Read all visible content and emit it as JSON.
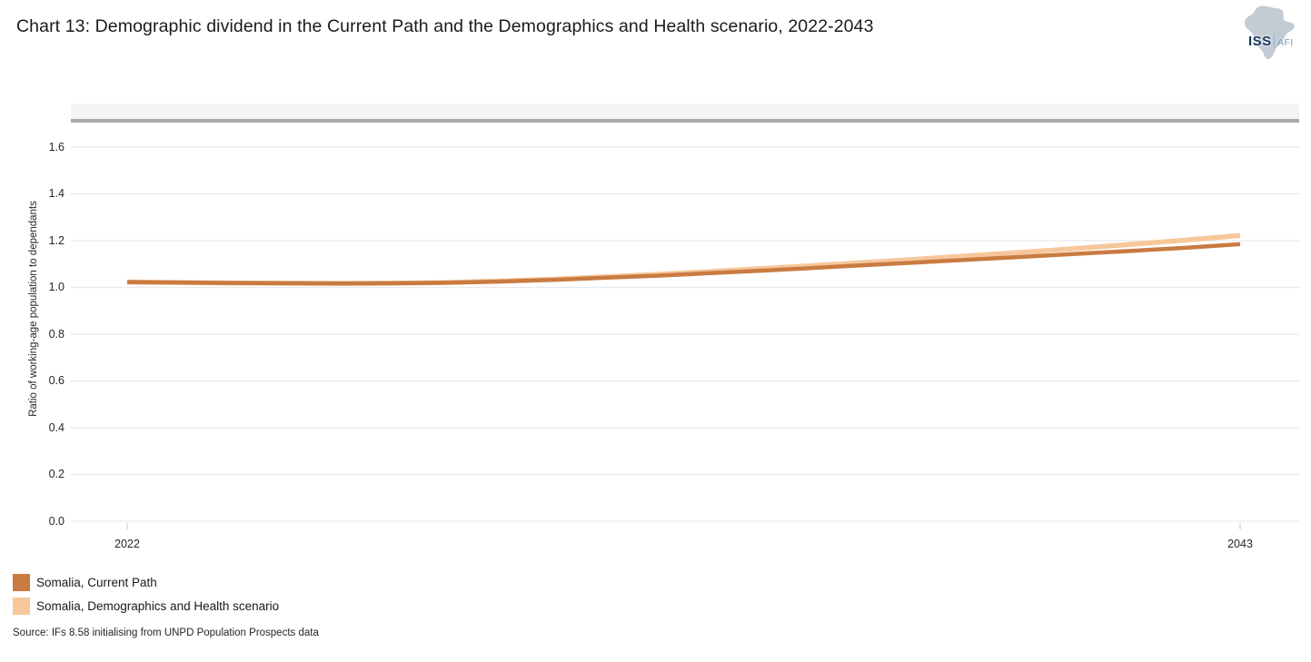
{
  "header": {
    "title": "Chart 13: Demographic dividend in the Current Path and the Demographics and Health scenario, 2022-2043",
    "logo": {
      "org": "ISS",
      "sub": "AFI"
    }
  },
  "chart_data": {
    "type": "line",
    "title": "Chart 13: Demographic dividend in the Current Path and the Demographics and Health scenario, 2022-2043",
    "xlabel": "",
    "ylabel": "Ratio of working-age population to dependants",
    "xlim": [
      2022,
      2043
    ],
    "ylim": [
      0,
      1.6
    ],
    "yticks": [
      0.0,
      0.2,
      0.4,
      0.6,
      0.8,
      1.0,
      1.2,
      1.4,
      1.6
    ],
    "ytick_labels": [
      "0.0",
      "0.2",
      "0.4",
      "0.6",
      "0.8",
      "1.0",
      "1.2",
      "1.4",
      "1.6"
    ],
    "xticks": [
      2022,
      2043
    ],
    "xtick_labels": [
      "2022",
      "2043"
    ],
    "grid": "horizontal",
    "legend_position": "bottom-left",
    "x": [
      2022,
      2023,
      2024,
      2025,
      2026,
      2027,
      2028,
      2029,
      2030,
      2031,
      2032,
      2033,
      2034,
      2035,
      2036,
      2037,
      2038,
      2039,
      2040,
      2041,
      2042,
      2043
    ],
    "series": [
      {
        "name": "Somalia, Current Path",
        "color": "#C97B42",
        "values": [
          1.023,
          1.021,
          1.019,
          1.018,
          1.017,
          1.018,
          1.02,
          1.025,
          1.032,
          1.041,
          1.05,
          1.061,
          1.072,
          1.084,
          1.096,
          1.108,
          1.12,
          1.132,
          1.145,
          1.157,
          1.17,
          1.185
        ]
      },
      {
        "name": "Somalia, Demographics and Health scenario",
        "color": "#F7C79B",
        "values": [
          1.023,
          1.021,
          1.019,
          1.018,
          1.017,
          1.018,
          1.021,
          1.027,
          1.035,
          1.045,
          1.056,
          1.068,
          1.081,
          1.094,
          1.108,
          1.122,
          1.137,
          1.152,
          1.168,
          1.185,
          1.203,
          1.222
        ]
      }
    ]
  },
  "legend": {
    "items": [
      {
        "label": "Somalia, Current Path",
        "color": "#C97B42"
      },
      {
        "label": "Somalia, Demographics and Health scenario",
        "color": "#F7C79B"
      }
    ]
  },
  "source": "Source: IFs 8.58 initialising from UNPD Population Prospects data",
  "style": {
    "band_color": "#f4f4f4",
    "band_underline_color": "#a9a9a9",
    "gridline_color": "#e9e9e9"
  }
}
